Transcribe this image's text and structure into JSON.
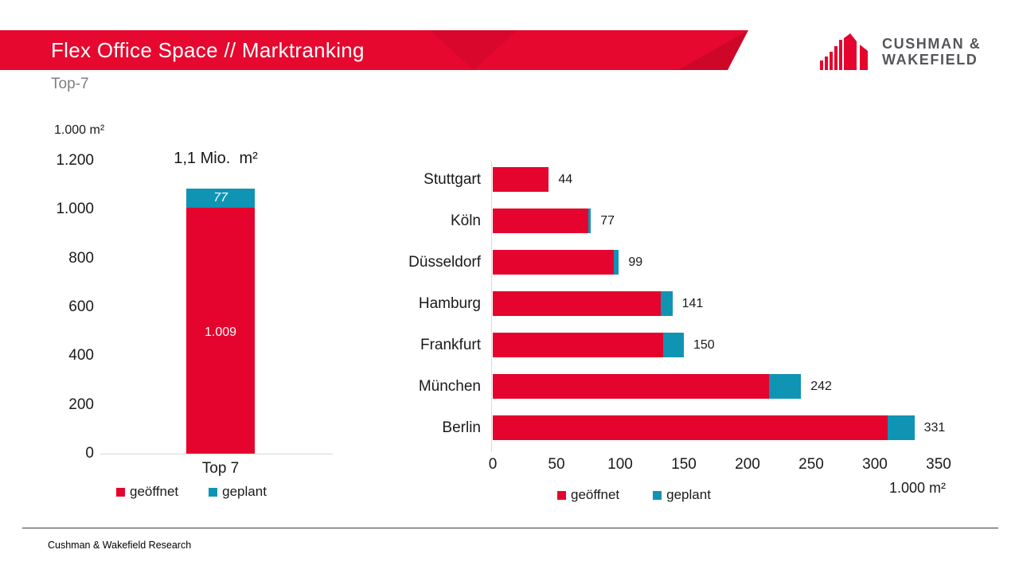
{
  "header": {
    "title": "Flex Office Space // Marktranking",
    "subtitle": "Top-7",
    "brand": {
      "line1": "CUSHMAN &",
      "line2": "WAKEFIELD"
    }
  },
  "footer": {
    "text": "Cushman & Wakefield Research"
  },
  "colors": {
    "red": "#e4042d",
    "teal": "#0f94b4",
    "banner_red": "#e6082e",
    "subtitle_gray": "#7f7f7f",
    "logo_gray": "#54565a",
    "axis_line": "#d9d9d9"
  },
  "chart_data": [
    {
      "type": "bar",
      "orientation": "vertical",
      "title": "1,1 Mio.  m²",
      "unit_label": "1.000 m²",
      "categories": [
        "Top 7"
      ],
      "series": [
        {
          "name": "geöffnet",
          "color": "#e4042d",
          "values": [
            1009
          ],
          "data_labels": [
            "1.009"
          ]
        },
        {
          "name": "geplant",
          "color": "#0f94b4",
          "values": [
            77
          ],
          "data_labels": [
            "77"
          ]
        }
      ],
      "ylim": [
        0,
        1200
      ],
      "yticks": [
        "0",
        "200",
        "400",
        "600",
        "800",
        "1.000",
        "1.200"
      ],
      "grid": false,
      "legend": [
        "geöffnet",
        "geplant"
      ],
      "legend_position": "bottom"
    },
    {
      "type": "bar",
      "orientation": "horizontal",
      "unit_label": "1.000 m²",
      "categories": [
        "Stuttgart",
        "Köln",
        "Düsseldorf",
        "Hamburg",
        "Frankfurt",
        "München",
        "Berlin"
      ],
      "series": [
        {
          "name": "geöffnet",
          "color": "#e4042d",
          "values": [
            44,
            75,
            95,
            132,
            134,
            217,
            310
          ]
        },
        {
          "name": "geplant",
          "color": "#0f94b4",
          "values": [
            0,
            2,
            4,
            9,
            16,
            25,
            21
          ]
        }
      ],
      "totals": [
        44,
        77,
        99,
        141,
        150,
        242,
        331
      ],
      "total_labels": [
        "44",
        "77",
        "99",
        "141",
        "150",
        "242",
        "331"
      ],
      "xlim": [
        0,
        350
      ],
      "xticks": [
        "0",
        "50",
        "100",
        "150",
        "200",
        "250",
        "300",
        "350"
      ],
      "grid": false,
      "legend": [
        "geöffnet",
        "geplant"
      ],
      "legend_position": "bottom"
    }
  ]
}
